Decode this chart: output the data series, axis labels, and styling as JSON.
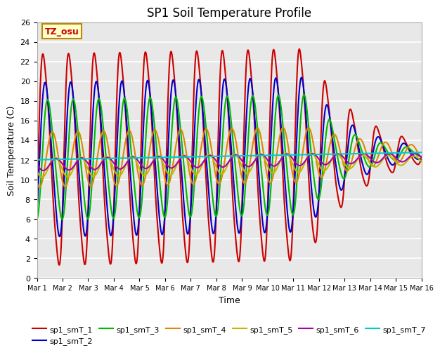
{
  "title": "SP1 Soil Temperature Profile",
  "xlabel": "Time",
  "ylabel": "Soil Temperature (C)",
  "ylim": [
    0,
    26
  ],
  "xlim": [
    0,
    15
  ],
  "xtick_labels": [
    "Mar 1",
    "Mar 2",
    "Mar 3",
    "Mar 4",
    "Mar 5",
    "Mar 6",
    "Mar 7",
    "Mar 8",
    "Mar 9",
    "Mar 10",
    "Mar 11",
    "Mar 12",
    "Mar 13",
    "Mar 14",
    "Mar 15",
    "Mar 16"
  ],
  "ytick_vals": [
    0,
    2,
    4,
    6,
    8,
    10,
    12,
    14,
    16,
    18,
    20,
    22,
    24,
    26
  ],
  "line_colors": [
    "#cc0000",
    "#0000cc",
    "#00bb00",
    "#dd8800",
    "#bbbb00",
    "#aa00aa",
    "#00cccc"
  ],
  "line_labels": [
    "sp1_smT_1",
    "sp1_smT_2",
    "sp1_smT_3",
    "sp1_smT_4",
    "sp1_smT_5",
    "sp1_smT_6",
    "sp1_smT_7"
  ],
  "annotation_text": "TZ_osu",
  "annotation_color": "#cc0000",
  "annotation_bg": "#ffffcc",
  "annotation_border": "#bb8800",
  "title_fontsize": 12,
  "axis_fontsize": 9,
  "legend_fontsize": 8
}
